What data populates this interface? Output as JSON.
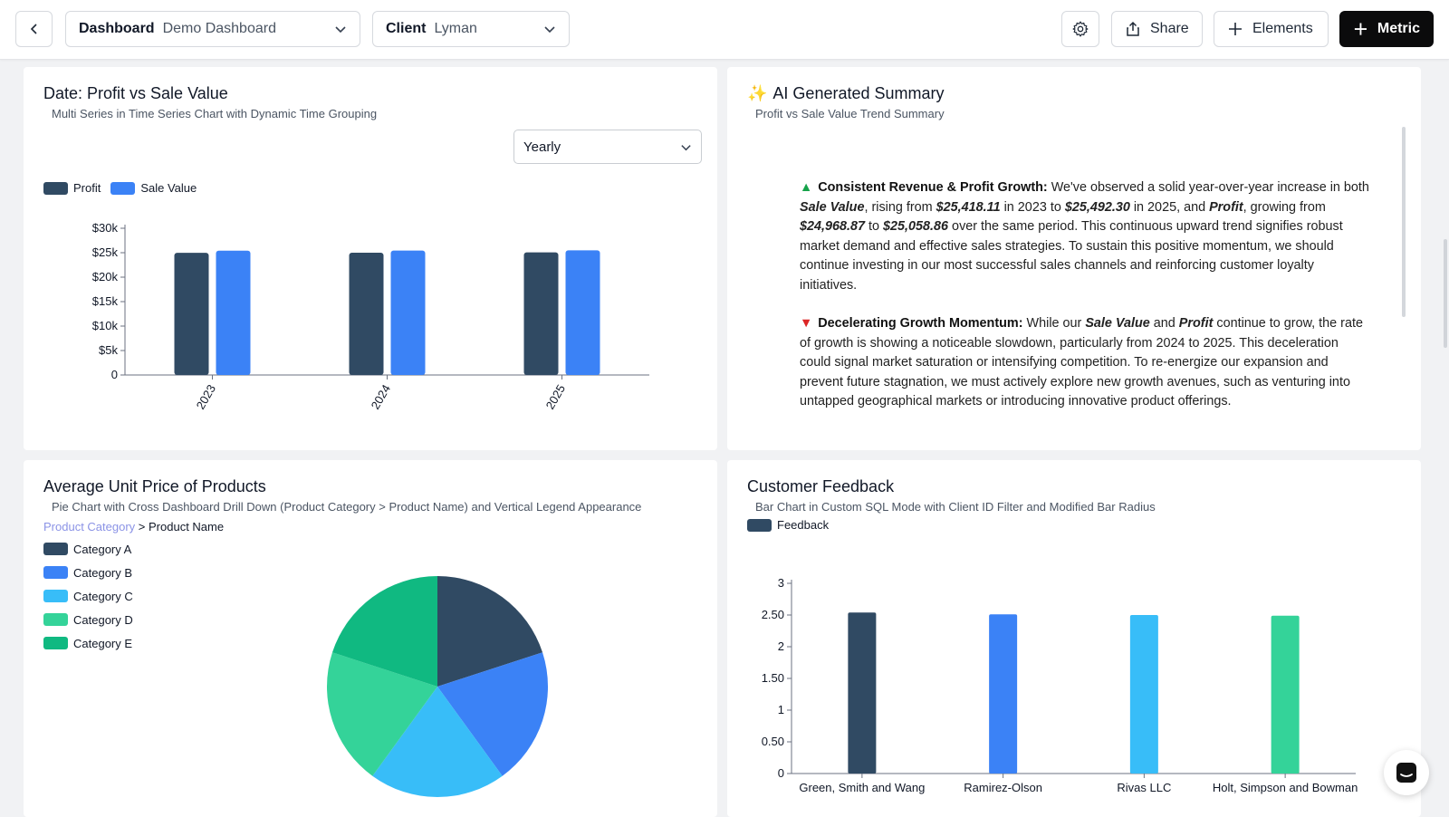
{
  "topbar": {
    "dashboard_label": "Dashboard",
    "dashboard_value": "Demo Dashboard",
    "client_label": "Client",
    "client_value": "Lyman",
    "share_label": "Share",
    "elements_label": "Elements",
    "metric_label": "Metric"
  },
  "card1": {
    "title": "Date: Profit vs Sale Value",
    "subtitle": "Multi Series in Time Series Chart with Dynamic Time Grouping",
    "grouping_value": "Yearly",
    "legend": [
      {
        "label": "Profit",
        "color": "#304a63"
      },
      {
        "label": "Sale Value",
        "color": "#3b82f6"
      }
    ],
    "chart_data": {
      "type": "bar",
      "categories": [
        "2023",
        "2024",
        "2025"
      ],
      "series": [
        {
          "name": "Profit",
          "values": [
            24968.87,
            25010,
            25058.86
          ]
        },
        {
          "name": "Sale Value",
          "values": [
            25418.11,
            25450,
            25492.3
          ]
        }
      ],
      "y_ticks": [
        0,
        5000,
        10000,
        15000,
        20000,
        25000,
        30000
      ],
      "y_tick_labels": [
        "0",
        "$5k",
        "$10k",
        "$15k",
        "$20k",
        "$25k",
        "$30k"
      ],
      "ylim": [
        0,
        30000
      ]
    }
  },
  "card2": {
    "title": "AI Generated Summary",
    "subtitle": "Profit vs Sale Value Trend Summary",
    "p1_heading": "Consistent Revenue & Profit Growth:",
    "p1_t1": " We've observed a solid year-over-year increase in both ",
    "p1_sale": "Sale Value",
    "p1_t2": ", rising from ",
    "p1_v1": "$25,418.11",
    "p1_t3": " in 2023 to ",
    "p1_v2": "$25,492.30",
    "p1_t4": " in 2025, and ",
    "p1_profit": "Profit",
    "p1_t5": ", growing from ",
    "p1_v3": "$24,968.87",
    "p1_t6": " to ",
    "p1_v4": "$25,058.86",
    "p1_t7": " over the same period. This continuous upward trend signifies robust market demand and effective sales strategies. To sustain this positive momentum, we should continue investing in our most successful sales channels and reinforcing customer loyalty initiatives.",
    "p2_heading": "Decelerating Growth Momentum:",
    "p2_t1": " While our ",
    "p2_sale": "Sale Value",
    "p2_t2": " and ",
    "p2_profit": "Profit",
    "p2_t3": " continue to grow, the rate of growth is showing a noticeable slowdown, particularly from 2024 to 2025. This deceleration could signal market saturation or intensifying competition. To re-energize our expansion and prevent future stagnation, we must actively explore new growth avenues, such as venturing into untapped geographical markets or introducing innovative product offerings."
  },
  "card3": {
    "title": "Average Unit Price of Products",
    "subtitle": "Pie Chart with Cross Dashboard Drill Down (Product Category > Product Name) and Vertical Legend Appearance",
    "breadcrumb_link": "Product Category",
    "breadcrumb_sep": " > ",
    "breadcrumb_current": "Product Name",
    "legend": [
      {
        "label": "Category A",
        "color": "#304a63"
      },
      {
        "label": "Category B",
        "color": "#3b82f6"
      },
      {
        "label": "Category C",
        "color": "#38bdf8"
      },
      {
        "label": "Category D",
        "color": "#34d399"
      },
      {
        "label": "Category E",
        "color": "#10b981"
      }
    ],
    "chart_data": {
      "type": "pie",
      "labels": [
        "Category A",
        "Category B",
        "Category C",
        "Category D",
        "Category E"
      ],
      "values": [
        20,
        20,
        20,
        20,
        20
      ]
    }
  },
  "card4": {
    "title": "Customer Feedback",
    "subtitle": "Bar Chart in Custom SQL Mode with Client ID Filter and Modified Bar Radius",
    "legend": [
      {
        "label": "Feedback",
        "color": "#304a63"
      }
    ],
    "chart_data": {
      "type": "bar",
      "categories": [
        "Green, Smith and Wang",
        "Ramirez-Olson",
        "Rivas LLC",
        "Holt, Simpson and Bowman"
      ],
      "values": [
        2.54,
        2.51,
        2.5,
        2.49
      ],
      "colors": [
        "#304a63",
        "#3b82f6",
        "#38bdf8",
        "#34d399"
      ],
      "y_ticks": [
        0,
        0.5,
        1,
        1.5,
        2,
        2.5,
        3
      ],
      "y_tick_labels": [
        "0",
        "0.50",
        "1",
        "1.50",
        "2",
        "2.50",
        "3"
      ],
      "ylim": [
        0,
        3
      ]
    }
  }
}
